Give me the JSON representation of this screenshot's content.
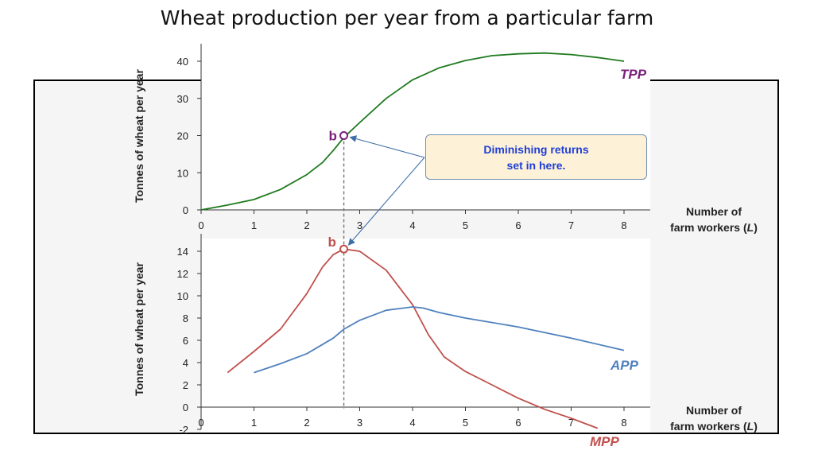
{
  "title": "Wheat production per year from a particular farm",
  "colors": {
    "tpp": "#1f7a1f",
    "mpp": "#c0504d",
    "app": "#4f81bd",
    "point_label": "#7a1f7a",
    "callout_text": "#1f3fd6",
    "callout_bg": "#fdf1d8"
  },
  "callout": {
    "text": "Diminishing returns\nset in here."
  },
  "chart_data": [
    {
      "type": "line",
      "name": "top",
      "ylabel": "Tonnes of wheat  per year",
      "xlabel_line1": "Number of",
      "xlabel_line2": "farm workers (",
      "xlabel_var": "L",
      "xlabel_close": ")",
      "xlim": [
        0,
        8
      ],
      "ylim": [
        0,
        40
      ],
      "xticks": [
        "0",
        "1",
        "2",
        "3",
        "4",
        "5",
        "6",
        "7",
        "8"
      ],
      "yticks": [
        "0",
        "10",
        "20",
        "30",
        "40"
      ],
      "series": [
        {
          "name": "TPP",
          "color": "#1f7a1f",
          "points": [
            [
              0,
              0
            ],
            [
              0.5,
              1.3
            ],
            [
              1,
              2.8
            ],
            [
              1.5,
              5.5
            ],
            [
              2,
              9.5
            ],
            [
              2.3,
              12.8
            ],
            [
              2.5,
              16
            ],
            [
              2.7,
              19.5
            ],
            [
              3,
              23.5
            ],
            [
              3.5,
              30
            ],
            [
              4,
              35
            ],
            [
              4.5,
              38.2
            ],
            [
              5,
              40.2
            ],
            [
              5.5,
              41.5
            ],
            [
              6,
              42
            ],
            [
              6.5,
              42.2
            ],
            [
              7,
              41.8
            ],
            [
              7.5,
              41
            ],
            [
              8,
              40
            ]
          ]
        }
      ],
      "point": {
        "label": "b",
        "x": 2.7,
        "y": 20
      }
    },
    {
      "type": "line",
      "name": "bottom",
      "ylabel": "Tonnes of wheat  per year",
      "xlabel_line1": "Number of",
      "xlabel_line2": "farm workers (",
      "xlabel_var": "L",
      "xlabel_close": ")",
      "xlim": [
        0,
        8
      ],
      "ylim": [
        -2,
        14
      ],
      "xticks": [
        "0",
        "1",
        "2",
        "3",
        "4",
        "5",
        "6",
        "7",
        "8"
      ],
      "yticks": [
        "-2",
        "0",
        "2",
        "4",
        "6",
        "8",
        "10",
        "12",
        "14"
      ],
      "series": [
        {
          "name": "MPP",
          "color": "#c0504d",
          "points": [
            [
              0.5,
              3.1
            ],
            [
              1,
              5
            ],
            [
              1.5,
              7
            ],
            [
              2,
              10.2
            ],
            [
              2.3,
              12.6
            ],
            [
              2.5,
              13.7
            ],
            [
              2.7,
              14.2
            ],
            [
              3,
              14
            ],
            [
              3.5,
              12.3
            ],
            [
              4,
              9.2
            ],
            [
              4.3,
              6.5
            ],
            [
              4.6,
              4.5
            ],
            [
              5,
              3.2
            ],
            [
              5.5,
              2
            ],
            [
              6,
              0.8
            ],
            [
              6.5,
              -0.2
            ],
            [
              7,
              -1
            ],
            [
              7.5,
              -1.9
            ]
          ]
        },
        {
          "name": "APP",
          "color": "#4f81bd",
          "points": [
            [
              1,
              3.1
            ],
            [
              1.5,
              3.9
            ],
            [
              2,
              4.8
            ],
            [
              2.5,
              6.2
            ],
            [
              2.7,
              7
            ],
            [
              3,
              7.8
            ],
            [
              3.5,
              8.7
            ],
            [
              4,
              9
            ],
            [
              4.2,
              8.9
            ],
            [
              4.5,
              8.5
            ],
            [
              5,
              8
            ],
            [
              6,
              7.2
            ],
            [
              7,
              6.2
            ],
            [
              8,
              5.1
            ]
          ]
        }
      ],
      "point": {
        "label": "b",
        "x": 2.7,
        "y": 14.2
      }
    }
  ]
}
